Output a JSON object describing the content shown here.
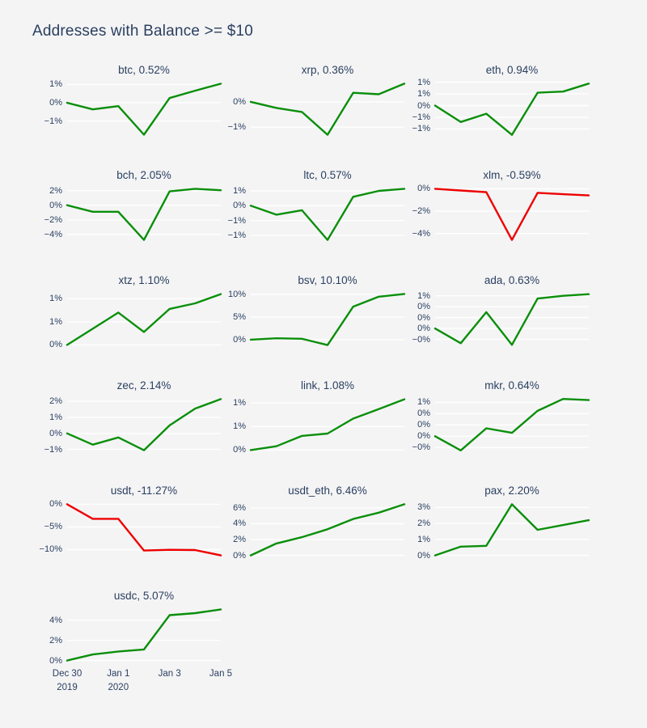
{
  "page": {
    "title": "Addresses with Balance >= $10",
    "background": "#f4f4f5",
    "text_color": "#2a3f5f"
  },
  "colors": {
    "positive_line": "#0a8f0a",
    "negative_line": "#ee0000",
    "gridline": "#ffffff"
  },
  "x_axis": {
    "tick_labels": [
      {
        "line1": "Dec 30",
        "line2": "2019",
        "frac": 0
      },
      {
        "line1": "Jan 1",
        "line2": "2020",
        "frac": 0.3333
      },
      {
        "line1": "Jan 3",
        "frac": 0.6667
      },
      {
        "line1": "Jan 5",
        "frac": 1
      }
    ]
  },
  "chart_data": {
    "type": "line",
    "layout_hint": "small-multiples grid, 3 columns, shared daily x-range Dec 30 2019 to Jan 5 2020, white gridlines on gray, no x axis except last chart",
    "x_visible_labels": [
      "Dec 30 2019",
      "Jan 1 2020",
      "Jan 3",
      "Jan 5"
    ],
    "charts": [
      {
        "id": "btc",
        "title": "btc, 0.52%",
        "direction": "up",
        "values": [
          0,
          -0.18,
          -0.09,
          -0.87,
          0.13,
          0.33,
          0.52
        ],
        "ymin": -0.97,
        "ymax": 0.62,
        "yticks": [
          {
            "v": 0.5,
            "label": "1%"
          },
          {
            "v": 0,
            "label": "0%"
          },
          {
            "v": -0.5,
            "label": "−1%"
          }
        ]
      },
      {
        "id": "xrp",
        "title": "xrp, 0.36%",
        "direction": "up",
        "values": [
          0,
          -0.12,
          -0.2,
          -0.65,
          0.18,
          0.15,
          0.36
        ],
        "ymin": -0.72,
        "ymax": 0.43,
        "yticks": [
          {
            "v": 0,
            "label": "0%"
          },
          {
            "v": -0.5,
            "label": "−1%"
          }
        ]
      },
      {
        "id": "eth",
        "title": "eth, 0.94%",
        "direction": "up",
        "values": [
          0,
          -0.7,
          -0.35,
          -1.25,
          0.55,
          0.6,
          0.94
        ],
        "ymin": -1.4,
        "ymax": 1.09,
        "yticks": [
          {
            "v": 1,
            "label": "1%"
          },
          {
            "v": 0.5,
            "label": "1%"
          },
          {
            "v": 0,
            "label": "0%"
          },
          {
            "v": -0.5,
            "label": "−1%"
          },
          {
            "v": -1,
            "label": "−1%"
          }
        ]
      },
      {
        "id": "bch",
        "title": "bch, 2.05%",
        "direction": "up",
        "values": [
          0,
          -0.9,
          -0.9,
          -4.75,
          1.9,
          2.25,
          2.05
        ],
        "ymin": -5.24,
        "ymax": 2.74,
        "yticks": [
          {
            "v": 2,
            "label": "2%"
          },
          {
            "v": 0,
            "label": "0%"
          },
          {
            "v": -2,
            "label": "−2%"
          },
          {
            "v": -4,
            "label": "−4%"
          }
        ]
      },
      {
        "id": "ltc",
        "title": "ltc, 0.57%",
        "direction": "up",
        "values": [
          0,
          -0.3,
          -0.15,
          -1.15,
          0.3,
          0.5,
          0.57
        ],
        "ymin": -1.27,
        "ymax": 0.69,
        "yticks": [
          {
            "v": 0.5,
            "label": "1%"
          },
          {
            "v": 0,
            "label": "0%"
          },
          {
            "v": -0.5,
            "label": "−1%"
          },
          {
            "v": -1,
            "label": "−1%"
          }
        ]
      },
      {
        "id": "xlm",
        "title": "xlm, -0.59%",
        "direction": "down",
        "values": [
          0,
          -0.15,
          -0.3,
          -4.57,
          -0.36,
          -0.48,
          -0.59
        ],
        "ymin": -4.89,
        "ymax": 0.32,
        "yticks": [
          {
            "v": 0,
            "label": "0%"
          },
          {
            "v": -2,
            "label": "−2%"
          },
          {
            "v": -4,
            "label": "−4%"
          }
        ]
      },
      {
        "id": "xtz",
        "title": "xtz, 1.10%",
        "direction": "up",
        "values": [
          0,
          0.35,
          0.7,
          0.28,
          0.78,
          0.9,
          1.1
        ],
        "ymin": -0.08,
        "ymax": 1.18,
        "yticks": [
          {
            "v": 1,
            "label": "1%"
          },
          {
            "v": 0.5,
            "label": "1%"
          },
          {
            "v": 0,
            "label": "0%"
          }
        ]
      },
      {
        "id": "bsv",
        "title": "bsv, 10.10%",
        "direction": "up",
        "values": [
          0,
          0.3,
          0.2,
          -1.2,
          7.3,
          9.5,
          10.1
        ],
        "ymin": -1.99,
        "ymax": 10.89,
        "yticks": [
          {
            "v": 10,
            "label": "10%"
          },
          {
            "v": 5,
            "label": "5%"
          },
          {
            "v": 0,
            "label": "0%"
          }
        ]
      },
      {
        "id": "ada",
        "title": "ada, 0.63%",
        "direction": "up",
        "values": [
          0,
          -0.27,
          0.3,
          -0.3,
          0.55,
          0.6,
          0.63
        ],
        "ymin": -0.37,
        "ymax": 0.7,
        "yticks": [
          {
            "v": 0.6,
            "label": "1%"
          },
          {
            "v": 0.4,
            "label": "0%"
          },
          {
            "v": 0.2,
            "label": "0%"
          },
          {
            "v": 0,
            "label": "0%"
          },
          {
            "v": -0.2,
            "label": "−0%"
          }
        ]
      },
      {
        "id": "zec",
        "title": "zec, 2.14%",
        "direction": "up",
        "values": [
          0,
          -0.7,
          -0.25,
          -1.05,
          0.5,
          1.55,
          2.14
        ],
        "ymin": -1.27,
        "ymax": 2.36,
        "yticks": [
          {
            "v": 2,
            "label": "2%"
          },
          {
            "v": 1,
            "label": "1%"
          },
          {
            "v": 0,
            "label": "0%"
          },
          {
            "v": -1,
            "label": "−1%"
          }
        ]
      },
      {
        "id": "link",
        "title": "link, 1.08%",
        "direction": "up",
        "values": [
          0,
          0.08,
          0.3,
          0.35,
          0.67,
          0.87,
          1.08
        ],
        "ymin": -0.08,
        "ymax": 1.16,
        "yticks": [
          {
            "v": 1,
            "label": "1%"
          },
          {
            "v": 0.5,
            "label": "1%"
          },
          {
            "v": 0,
            "label": "0%"
          }
        ]
      },
      {
        "id": "mkr",
        "title": "mkr, 0.64%",
        "direction": "up",
        "values": [
          0,
          -0.25,
          0.14,
          0.06,
          0.45,
          0.66,
          0.64
        ],
        "ymin": -0.31,
        "ymax": 0.72,
        "yticks": [
          {
            "v": 0.6,
            "label": "1%"
          },
          {
            "v": 0.4,
            "label": "0%"
          },
          {
            "v": 0.2,
            "label": "0%"
          },
          {
            "v": 0,
            "label": "0%"
          },
          {
            "v": -0.2,
            "label": "−0%"
          }
        ]
      },
      {
        "id": "usdt",
        "title": "usdt, -11.27%",
        "direction": "down",
        "values": [
          0,
          -3.2,
          -3.2,
          -10.2,
          -10.05,
          -10.1,
          -11.27
        ],
        "ymin": -12.06,
        "ymax": 0.79,
        "yticks": [
          {
            "v": 0,
            "label": "0%"
          },
          {
            "v": -5,
            "label": "−5%"
          },
          {
            "v": -10,
            "label": "−10%"
          }
        ]
      },
      {
        "id": "usdt_eth",
        "title": "usdt_eth, 6.46%",
        "direction": "up",
        "values": [
          0,
          1.5,
          2.3,
          3.3,
          4.6,
          5.4,
          6.46
        ],
        "ymin": -0.45,
        "ymax": 6.91,
        "yticks": [
          {
            "v": 6,
            "label": "6%"
          },
          {
            "v": 4,
            "label": "4%"
          },
          {
            "v": 2,
            "label": "2%"
          },
          {
            "v": 0,
            "label": "0%"
          }
        ]
      },
      {
        "id": "pax",
        "title": "pax, 2.20%",
        "direction": "up",
        "values": [
          0,
          0.55,
          0.6,
          3.2,
          1.6,
          1.9,
          2.2
        ],
        "ymin": -0.22,
        "ymax": 3.42,
        "yticks": [
          {
            "v": 3,
            "label": "3%"
          },
          {
            "v": 2,
            "label": "2%"
          },
          {
            "v": 1,
            "label": "1%"
          },
          {
            "v": 0,
            "label": "0%"
          }
        ]
      },
      {
        "id": "usdc",
        "title": "usdc, 5.07%",
        "direction": "up",
        "values": [
          0,
          0.6,
          0.9,
          1.1,
          4.5,
          4.7,
          5.07
        ],
        "ymin": -0.35,
        "ymax": 5.42,
        "show_x_axis": true,
        "yticks": [
          {
            "v": 4,
            "label": "4%"
          },
          {
            "v": 2,
            "label": "2%"
          },
          {
            "v": 0,
            "label": "0%"
          }
        ]
      }
    ]
  }
}
